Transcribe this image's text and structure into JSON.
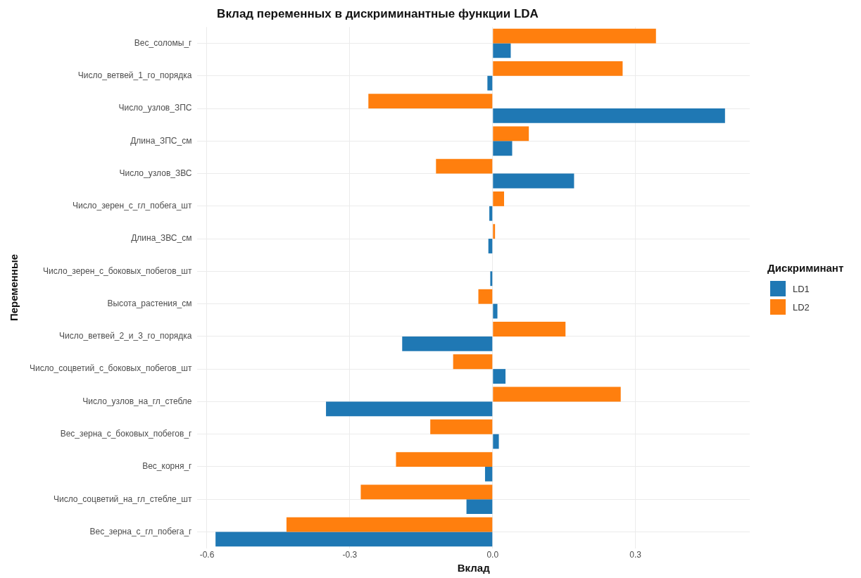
{
  "chart_data": {
    "type": "bar",
    "orientation": "horizontal",
    "title": "Вклад переменных в дискриминантные функции LDA",
    "xlabel": "Вклад",
    "ylabel": "Переменные",
    "legend_title": "Дискриминант",
    "legend": "right",
    "grid": true,
    "categories": [
      "Вес_соломы_г",
      "Число_ветвей_1_го_порядка",
      "Число_узлов_ЗПС",
      "Длина_ЗПС_см",
      "Число_узлов_ЗВС",
      "Число_зерен_с_гл_побега_шт",
      "Длина_ЗВС_см",
      "Число_зерен_с_боковых_побегов_шт",
      "Высота_растения_см",
      "Число_ветвей_2_и_3_го_порядка",
      "Число_соцветий_с_боковых_побегов_шт",
      "Число_узлов_на_гл_стебле",
      "Вес_зерна_с_боковых_побегов_г",
      "Вес_корня_г",
      "Число_соцветий_на_гл_стебле_шт",
      "Вес_зерна_с_гл_побега_г"
    ],
    "series": [
      {
        "name": "LD1",
        "color": "#1f78b4",
        "values": [
          0.038,
          -0.011,
          0.488,
          0.041,
          0.171,
          -0.007,
          -0.009,
          -0.005,
          0.01,
          -0.19,
          0.027,
          -0.35,
          0.013,
          -0.016,
          -0.055,
          -0.582
        ]
      },
      {
        "name": "LD2",
        "color": "#ff7f0e",
        "values": [
          0.343,
          0.273,
          -0.261,
          0.076,
          -0.119,
          0.024,
          0.005,
          null,
          -0.03,
          0.153,
          -0.083,
          0.269,
          -0.131,
          -0.203,
          -0.277,
          -0.433
        ]
      }
    ],
    "xlim": [
      -0.62,
      0.54
    ],
    "xticks": [
      -0.6,
      -0.3,
      {
        "value": 0,
        "label": "0.0"
      },
      0.3
    ]
  }
}
